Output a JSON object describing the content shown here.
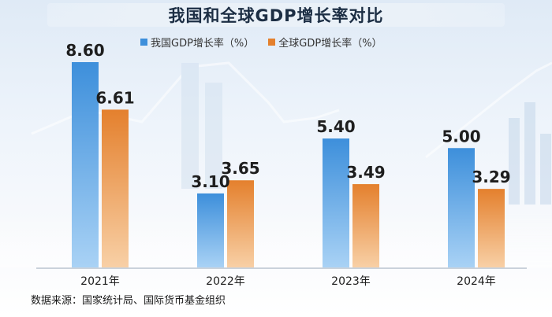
{
  "chart_data": {
    "type": "bar",
    "title": "我国和全球GDP增长率对比",
    "categories": [
      "2021年",
      "2022年",
      "2023年",
      "2024年"
    ],
    "series": [
      {
        "name": "我国GDP增长率（%）",
        "values": [
          8.6,
          3.1,
          5.4,
          5.0
        ],
        "labels": [
          "8.60",
          "3.10",
          "5.40",
          "5.00"
        ],
        "color": "#3d8fdb"
      },
      {
        "name": "全球GDP增长率（%）",
        "values": [
          6.61,
          3.65,
          3.49,
          3.29
        ],
        "labels": [
          "6.61",
          "3.65",
          "3.49",
          "3.29"
        ],
        "color": "#e4802d"
      }
    ],
    "ylim": [
      0,
      10
    ],
    "legend_position": "top-center",
    "grid": false,
    "source": "数据来源：国家统计局、国际货币基金组织"
  }
}
